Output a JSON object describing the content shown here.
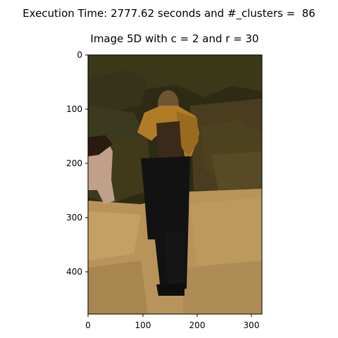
{
  "figure": {
    "suptitle": "Execution Time: 2777.62 seconds and #_clusters =  86",
    "title": "Image 5D with c = 2 and r = 30"
  },
  "axes": {
    "x_ticks": [
      "0",
      "100",
      "200",
      "300"
    ],
    "y_ticks": [
      "0",
      "100",
      "200",
      "300",
      "400"
    ]
  },
  "image": {
    "description": "segmented photo of a person in dark trousers and mustard top standing on a sandy path",
    "palette": {
      "background_dark": "#2f2c14",
      "trees": "#3c3a1e",
      "top_mustard": "#b07c28",
      "trousers": "#121212",
      "ground": "#b8945a",
      "ground_light": "#c9a566",
      "skin": "#6e5432",
      "side_figure": "#c0a08a"
    }
  }
}
